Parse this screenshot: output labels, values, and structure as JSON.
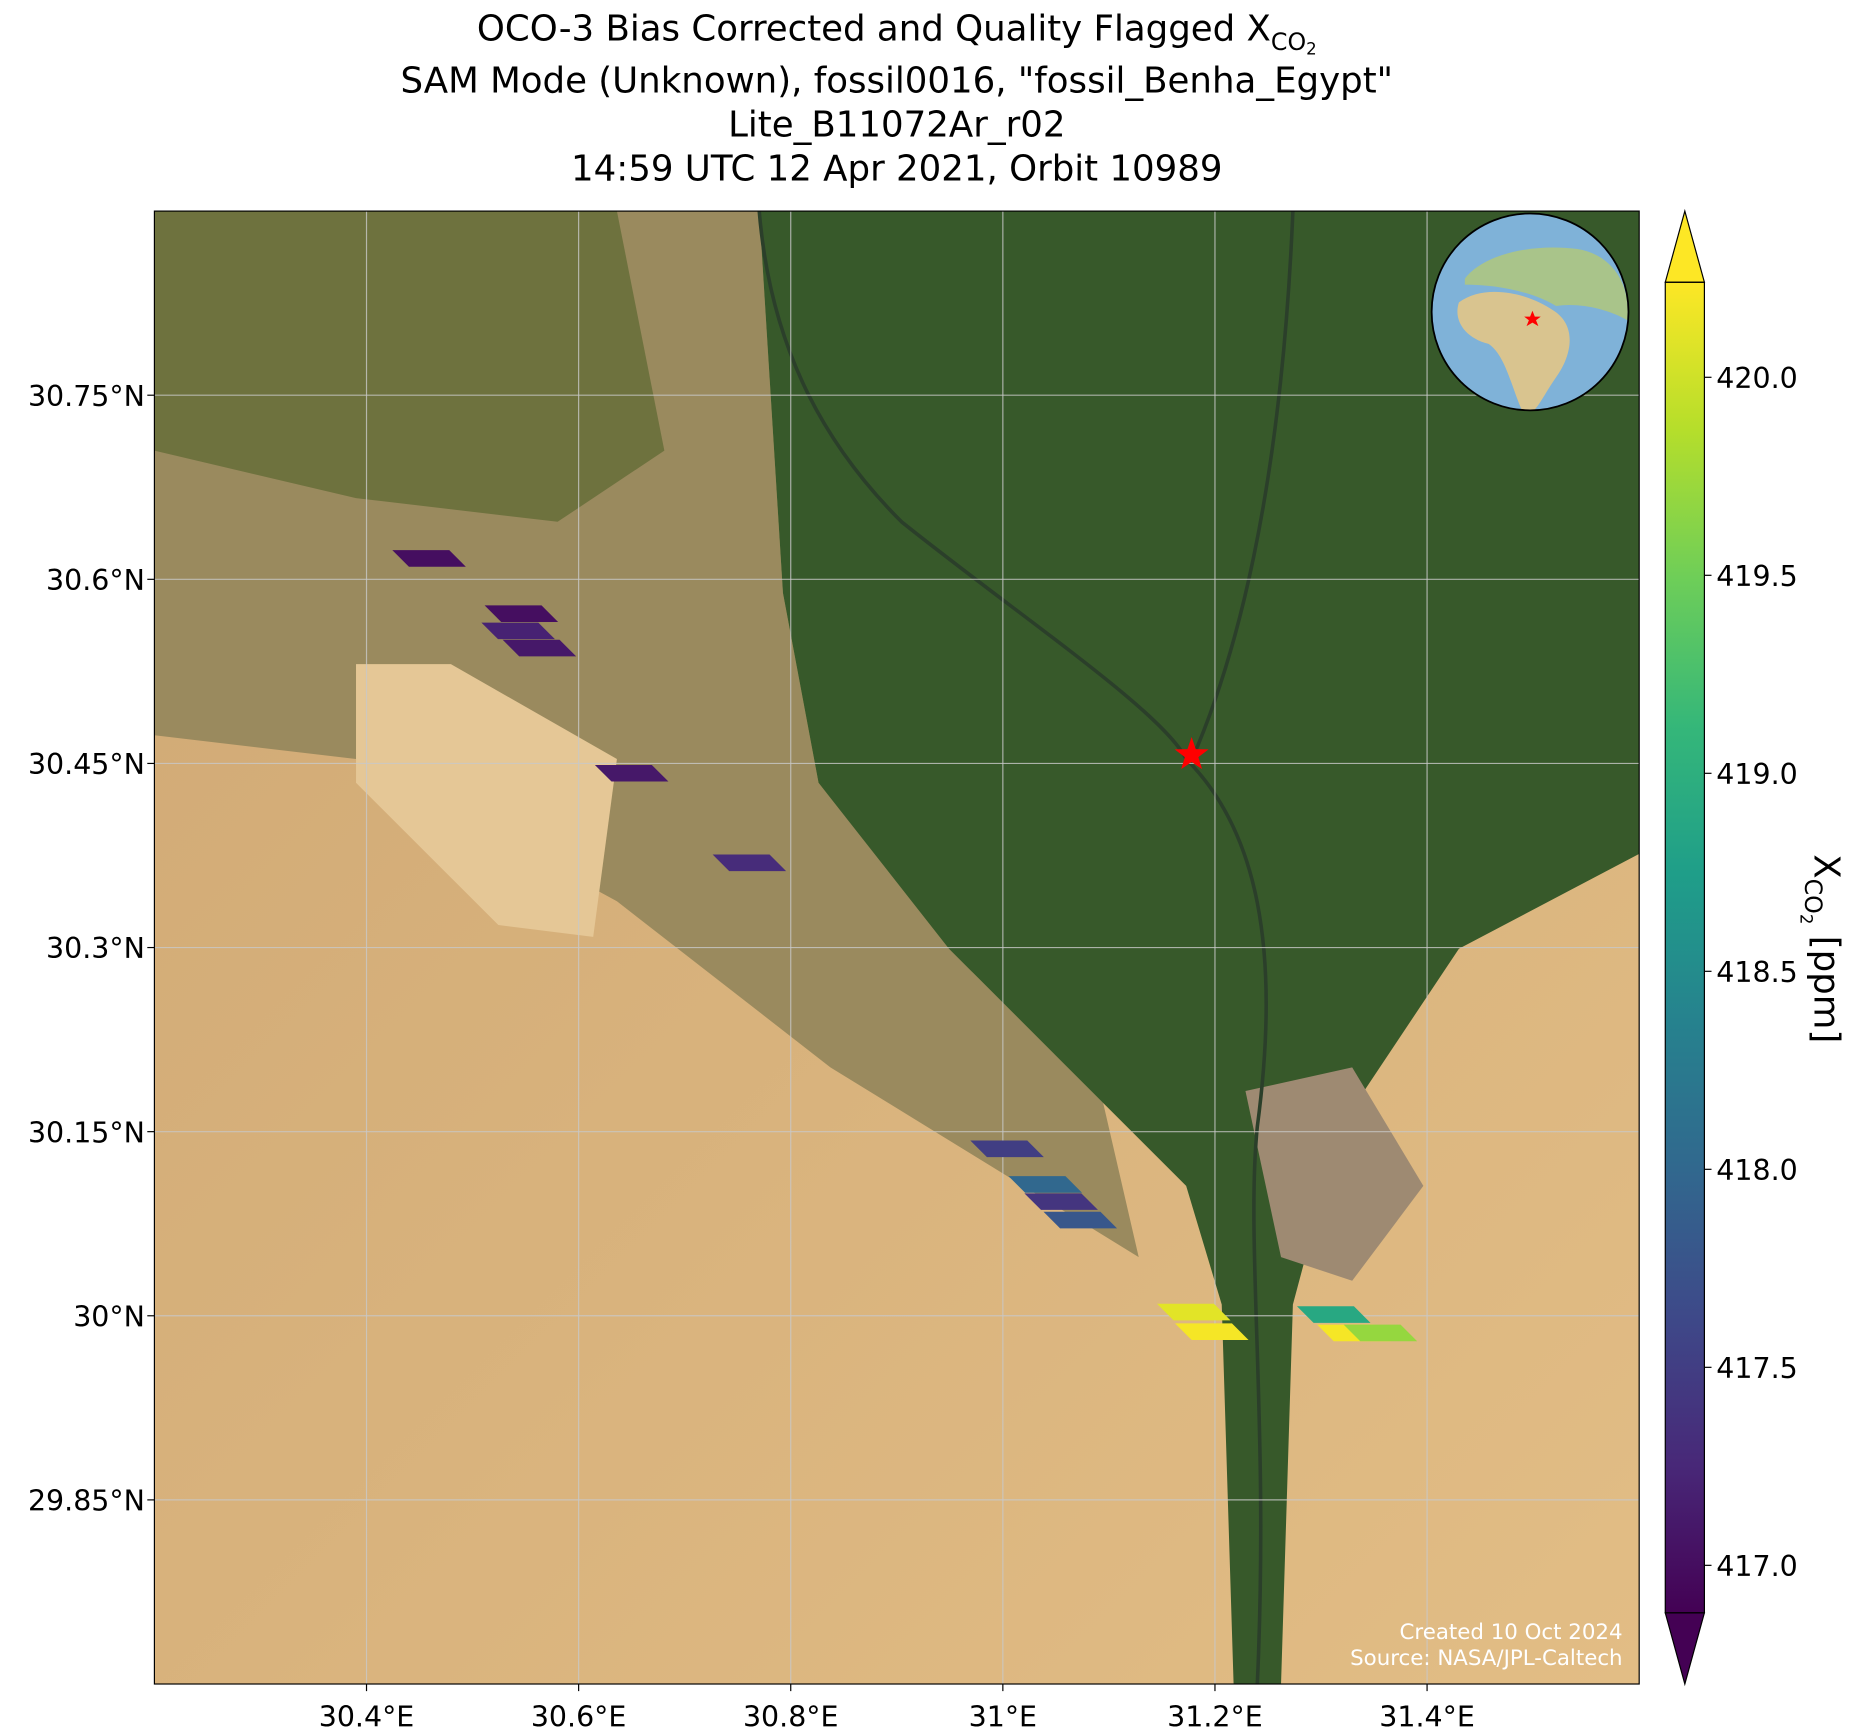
{
  "chart_data": {
    "type": "map",
    "title": {
      "lead": "OCO-3 Bias Corrected and Quality Flagged X",
      "sub": "CO",
      "subsub": "2"
    },
    "subtitles": [
      "SAM Mode (Unknown), fossil0016, \"fossil_Benha_Egypt\"",
      "Lite_B11072Ar_r02",
      "14:59 UTC 12 Apr 2021, Orbit 10989"
    ],
    "xlim": [
      30.2,
      31.6
    ],
    "ylim": [
      29.7,
      30.9
    ],
    "xticks": [
      {
        "value": 30.4,
        "label": "30.4°E"
      },
      {
        "value": 30.6,
        "label": "30.6°E"
      },
      {
        "value": 30.8,
        "label": "30.8°E"
      },
      {
        "value": 31,
        "label": "31°E"
      },
      {
        "value": 31.2,
        "label": "31.2°E"
      },
      {
        "value": 31.4,
        "label": "31.4°E"
      }
    ],
    "yticks": [
      {
        "value": 29.85,
        "label": "29.85°N"
      },
      {
        "value": 30,
        "label": "30°N"
      },
      {
        "value": 30.15,
        "label": "30.15°N"
      },
      {
        "value": 30.3,
        "label": "30.3°N"
      },
      {
        "value": 30.45,
        "label": "30.45°N"
      },
      {
        "value": 30.6,
        "label": "30.6°N"
      },
      {
        "value": 30.75,
        "label": "30.75°N"
      }
    ],
    "grid": true,
    "colormap": "viridis",
    "clim": [
      416.88,
      420.24
    ],
    "cticks": [
      {
        "value": 417,
        "label": "417.0"
      },
      {
        "value": 417.5,
        "label": "417.5"
      },
      {
        "value": 418,
        "label": "418.0"
      },
      {
        "value": 418.5,
        "label": "418.5"
      },
      {
        "value": 419,
        "label": "419.0"
      },
      {
        "value": 419.5,
        "label": "419.5"
      },
      {
        "value": 420,
        "label": "420.0"
      }
    ],
    "colorbar_label": {
      "lead": "X",
      "sub": "CO",
      "subsub": "2",
      "tail": " [ppm]"
    },
    "lon": [
      30.459,
      30.546,
      30.543,
      30.563,
      30.65,
      30.761,
      31.004,
      31.04,
      31.055,
      31.073,
      31.18,
      31.197,
      31.312,
      31.331,
      31.356
    ],
    "lat": [
      30.617,
      30.572,
      30.558,
      30.544,
      30.442,
      30.369,
      30.136,
      30.107,
      30.093,
      30.078,
      30.003,
      29.987,
      30.001,
      29.986,
      29.986
    ],
    "xco2": [
      417.0,
      417.0,
      417.2,
      417.1,
      417.1,
      417.3,
      417.5,
      418.0,
      417.4,
      417.8,
      420.1,
      420.2,
      418.9,
      420.2,
      419.7
    ],
    "site": {
      "lon": 31.178,
      "lat": 30.457,
      "color": "#ff0000"
    },
    "annotations": [
      "Created 10 Oct 2024",
      "Source: NASA/JPL-Caltech"
    ]
  }
}
